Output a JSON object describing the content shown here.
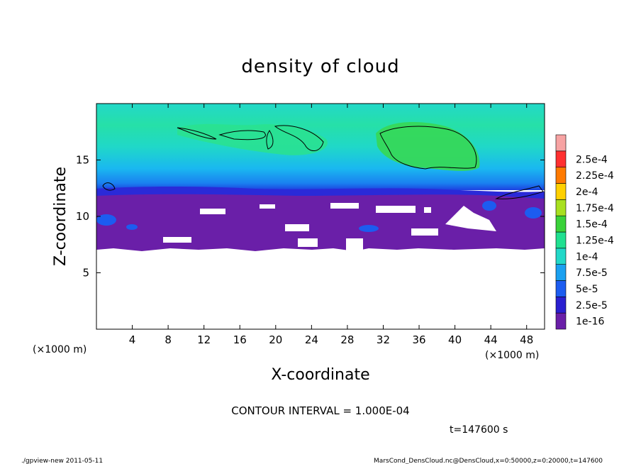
{
  "chart_data": {
    "type": "heatmap",
    "title": "density of cloud",
    "xlabel": "X-coordinate",
    "ylabel": "Z-coordinate",
    "x_unit": "(×1000 m)",
    "y_unit": "(×1000 m)",
    "xlim": [
      0,
      50
    ],
    "ylim": [
      0,
      20
    ],
    "x_ticks": [
      4,
      8,
      12,
      16,
      20,
      24,
      28,
      32,
      36,
      40,
      44,
      48
    ],
    "y_ticks": [
      5,
      10,
      15
    ],
    "colorbar": {
      "labels": [
        "1e-16",
        "2.5e-5",
        "5e-5",
        "7.5e-5",
        "1e-4",
        "1.25e-4",
        "1.5e-4",
        "1.75e-4",
        "2e-4",
        "2.25e-4",
        "2.5e-4"
      ],
      "colors": [
        "#6a1fa8",
        "#2a1fd0",
        "#1c5cf0",
        "#1aa0f0",
        "#22d8c8",
        "#20e090",
        "#3ad23a",
        "#a8e020",
        "#ffd000",
        "#ff7a00",
        "#ff3030",
        "#f7a3a3"
      ]
    },
    "contour_interval": "CONTOUR INTERVAL = 1.000E-04",
    "time_label": "t=147600 s",
    "description_fields": {
      "cloud_layer_bottom_km": 7.2,
      "cloud_layer_top_km": 19.5,
      "dense_band_km": [
        7.2,
        12.0
      ],
      "peak_region_x_km": [
        32,
        42
      ],
      "peak_region_z_km": [
        14,
        18
      ]
    }
  },
  "footer": {
    "left": "./gpview-new   2011-05-11",
    "right": "MarsCond_DensCloud.nc@DensCloud,x=0:50000,z=0:20000,t=147600"
  }
}
